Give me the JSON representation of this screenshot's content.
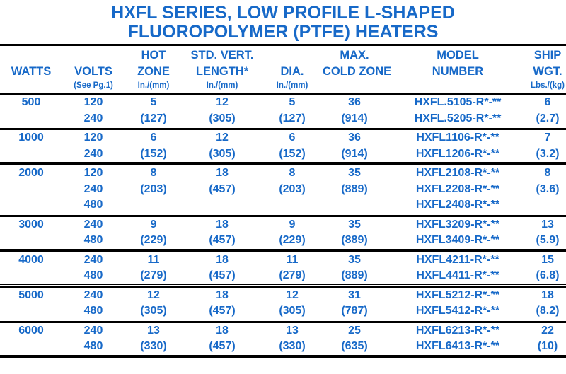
{
  "title": {
    "line1": "HXFL SERIES, LOW PROFILE L-SHAPED",
    "line2": "FLUOROPOLYMER (PTFE) HEATERS"
  },
  "colors": {
    "text_blue": "#1769c8",
    "rule_black": "#000000",
    "background": "#ffffff"
  },
  "table": {
    "columns": [
      {
        "id": "watts",
        "line1": "",
        "line2": "WATTS",
        "units": ""
      },
      {
        "id": "volts",
        "line1": "",
        "line2": "VOLTS",
        "units": "(See Pg.1)"
      },
      {
        "id": "hot-zone",
        "line1": "HOT",
        "line2": "ZONE",
        "units": "In./(mm)"
      },
      {
        "id": "std-vert-length",
        "line1": "STD. VERT.",
        "line2": "LENGTH*",
        "units": "In./(mm)"
      },
      {
        "id": "dia",
        "line1": "",
        "line2": "DIA.",
        "units": "In./(mm)"
      },
      {
        "id": "max-cold-zone",
        "line1": "MAX.",
        "line2": "COLD ZONE",
        "units": ""
      },
      {
        "id": "model-number",
        "line1": "MODEL",
        "line2": "NUMBER",
        "units": ""
      },
      {
        "id": "ship-wgt",
        "line1": "SHIP",
        "line2": "WGT.",
        "units": "Lbs./(kg)"
      }
    ],
    "groups": [
      {
        "watts": "500",
        "rows": [
          [
            "500",
            "120",
            "5",
            "12",
            "5",
            "36",
            "HXFL.5105-R*-**",
            "6"
          ],
          [
            "",
            "240",
            "(127)",
            "(305)",
            "(127)",
            "(914)",
            "HXFL.5205-R*-**",
            "(2.7)"
          ]
        ]
      },
      {
        "watts": "1000",
        "rows": [
          [
            "1000",
            "120",
            "6",
            "12",
            "6",
            "36",
            "HXFL1106-R*-**",
            "7"
          ],
          [
            "",
            "240",
            "(152)",
            "(305)",
            "(152)",
            "(914)",
            "HXFL1206-R*-**",
            "(3.2)"
          ]
        ]
      },
      {
        "watts": "2000",
        "rows": [
          [
            "2000",
            "120",
            "8",
            "18",
            "8",
            "35",
            "HXFL2108-R*-**",
            "8"
          ],
          [
            "",
            "240",
            "(203)",
            "(457)",
            "(203)",
            "(889)",
            "HXFL2208-R*-**",
            "(3.6)"
          ],
          [
            "",
            "480",
            "",
            "",
            "",
            "",
            "HXFL2408-R*-**",
            ""
          ]
        ]
      },
      {
        "watts": "3000",
        "rows": [
          [
            "3000",
            "240",
            "9",
            "18",
            "9",
            "35",
            "HXFL3209-R*-**",
            "13"
          ],
          [
            "",
            "480",
            "(229)",
            "(457)",
            "(229)",
            "(889)",
            "HXFL3409-R*-**",
            "(5.9)"
          ]
        ]
      },
      {
        "watts": "4000",
        "rows": [
          [
            "4000",
            "240",
            "11",
            "18",
            "11",
            "35",
            "HXFL4211-R*-**",
            "15"
          ],
          [
            "",
            "480",
            "(279)",
            "(457)",
            "(279)",
            "(889)",
            "HXFL4411-R*-**",
            "(6.8)"
          ]
        ]
      },
      {
        "watts": "5000",
        "rows": [
          [
            "5000",
            "240",
            "12",
            "18",
            "12",
            "31",
            "HXFL5212-R*-**",
            "18"
          ],
          [
            "",
            "480",
            "(305)",
            "(457)",
            "(305)",
            "(787)",
            "HXFL5412-R*-**",
            "(8.2)"
          ]
        ]
      },
      {
        "watts": "6000",
        "rows": [
          [
            "6000",
            "240",
            "13",
            "18",
            "13",
            "25",
            "HXFL6213-R*-**",
            "22"
          ],
          [
            "",
            "480",
            "(330)",
            "(457)",
            "(330)",
            "(635)",
            "HXFL6413-R*-**",
            "(10)"
          ]
        ]
      }
    ]
  }
}
